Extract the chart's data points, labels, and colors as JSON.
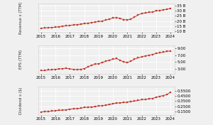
{
  "revenue": {
    "x": [
      2015,
      2015.25,
      2015.5,
      2015.75,
      2016,
      2016.25,
      2016.5,
      2016.75,
      2017,
      2017.25,
      2017.5,
      2017.75,
      2018,
      2018.25,
      2018.5,
      2018.75,
      2019,
      2019.25,
      2019.5,
      2019.75,
      2020,
      2020.25,
      2020.5,
      2020.75,
      2021,
      2021.25,
      2021.5,
      2021.75,
      2022,
      2022.25,
      2022.5,
      2022.75,
      2023,
      2023.25,
      2023.5,
      2023.75,
      2024
    ],
    "y": [
      13.0,
      13.2,
      13.5,
      13.8,
      14.0,
      14.5,
      15.0,
      15.3,
      15.8,
      16.2,
      16.5,
      17.0,
      17.5,
      18.0,
      18.5,
      19.0,
      19.5,
      20.0,
      21.0,
      22.0,
      23.0,
      23.5,
      22.5,
      21.5,
      21.0,
      22.0,
      24.0,
      26.0,
      27.5,
      28.0,
      28.5,
      29.0,
      30.0,
      30.5,
      31.0,
      31.5,
      32.5
    ],
    "ylabel": "Revenue s (TTM)",
    "yticks": [
      10,
      15,
      20,
      25,
      30,
      35
    ],
    "ytick_labels": [
      "10 B",
      "15 B",
      "20 B",
      "25 B",
      "30 B",
      "35 B"
    ],
    "ylim": [
      9,
      37
    ]
  },
  "eps": {
    "x": [
      2015,
      2015.25,
      2015.5,
      2015.75,
      2016,
      2016.25,
      2016.5,
      2016.75,
      2017,
      2017.25,
      2017.5,
      2017.75,
      2018,
      2018.25,
      2018.5,
      2018.75,
      2019,
      2019.25,
      2019.5,
      2019.75,
      2020,
      2020.25,
      2020.5,
      2020.75,
      2021,
      2021.25,
      2021.5,
      2021.75,
      2022,
      2022.25,
      2022.5,
      2022.75,
      2023,
      2023.25,
      2023.5,
      2023.75,
      2024
    ],
    "y": [
      2.4,
      2.5,
      2.6,
      2.7,
      2.8,
      2.9,
      3.0,
      3.1,
      2.9,
      2.8,
      2.7,
      2.8,
      3.0,
      3.5,
      4.0,
      4.3,
      4.5,
      4.8,
      5.2,
      5.5,
      5.8,
      6.0,
      5.5,
      5.0,
      4.8,
      5.2,
      5.8,
      6.2,
      6.5,
      6.8,
      7.0,
      7.2,
      7.5,
      7.7,
      7.9,
      8.1,
      8.3
    ],
    "ylabel": "EPS (TTM)",
    "yticks": [
      3,
      5,
      7,
      9
    ],
    "ytick_labels": [
      "3.00",
      "5.00",
      "7.00",
      "9.00"
    ],
    "ylim": [
      1.5,
      10
    ]
  },
  "dividend": {
    "x": [
      2015,
      2015.25,
      2015.5,
      2015.75,
      2016,
      2016.25,
      2016.5,
      2016.75,
      2017,
      2017.25,
      2017.5,
      2017.75,
      2018,
      2018.25,
      2018.5,
      2018.75,
      2019,
      2019.25,
      2019.5,
      2019.75,
      2020,
      2020.25,
      2020.5,
      2020.75,
      2021,
      2021.25,
      2021.5,
      2021.75,
      2022,
      2022.25,
      2022.5,
      2022.75,
      2023,
      2023.25,
      2023.5,
      2023.75,
      2024
    ],
    "y": [
      0.14,
      0.145,
      0.15,
      0.155,
      0.165,
      0.17,
      0.175,
      0.18,
      0.195,
      0.2,
      0.205,
      0.21,
      0.225,
      0.23,
      0.235,
      0.24,
      0.255,
      0.26,
      0.27,
      0.28,
      0.3,
      0.31,
      0.315,
      0.32,
      0.33,
      0.34,
      0.35,
      0.36,
      0.375,
      0.38,
      0.39,
      0.4,
      0.42,
      0.44,
      0.455,
      0.47,
      0.52
    ],
    "ylabel": "Dividend s ($)",
    "yticks": [
      0.15,
      0.25,
      0.35,
      0.45,
      0.55
    ],
    "ytick_labels": [
      "0.1500",
      "0.2500",
      "0.3500",
      "0.4500",
      "0.5500"
    ],
    "ylim": [
      0.08,
      0.63
    ]
  },
  "line_color": "#c0392b",
  "marker": "s",
  "markersize": 1.5,
  "linewidth": 0.7,
  "bg_color": "#f0f0f0",
  "grid_color": "#ffffff",
  "xticks": [
    2015,
    2016,
    2017,
    2018,
    2019,
    2020,
    2021,
    2022,
    2023,
    2024
  ],
  "xtick_labels": [
    "2015",
    "2016",
    "2017",
    "2018",
    "2019",
    "2020",
    "2021",
    "2022",
    "2023",
    "2024"
  ],
  "tick_fontsize": 4.0,
  "label_fontsize": 4.0
}
